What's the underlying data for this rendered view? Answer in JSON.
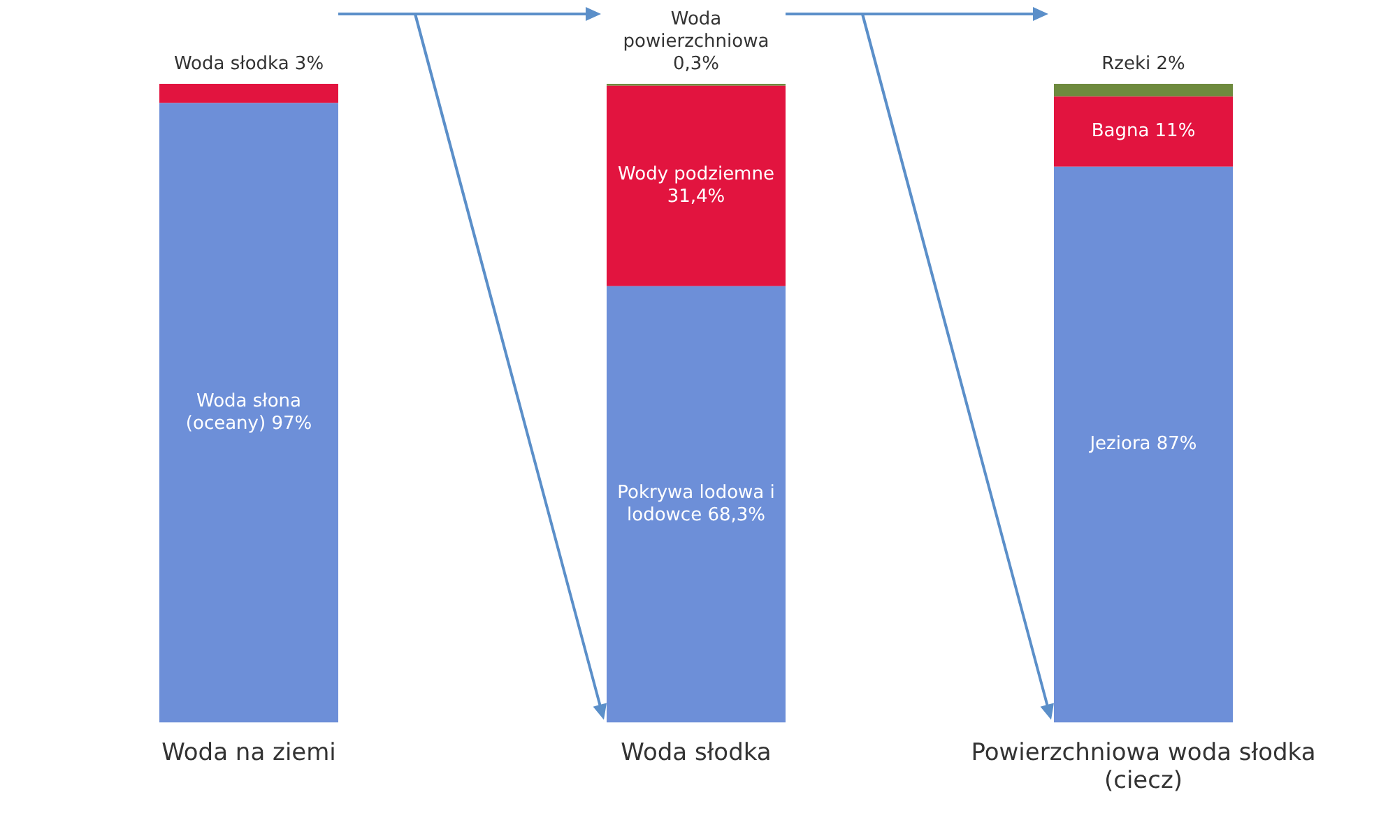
{
  "chart_data": {
    "type": "bar",
    "stacked": true,
    "categories": [
      "Woda na ziemi",
      "Woda słodka",
      "Powierzchniowa woda słodka (ciecz)"
    ],
    "ylim": [
      0,
      100
    ],
    "tick_labels": "x",
    "grid": false,
    "legend": false,
    "series": [
      {
        "color": "#6d8fd8",
        "values": [
          97,
          68.3,
          87
        ],
        "value_labels": [
          "Woda słona (oceany) 97%",
          "Pokrywa lodowa i lodowce 68,3%",
          "Jeziora 87%"
        ]
      },
      {
        "color": "#e2143f",
        "values": [
          3,
          31.4,
          11
        ],
        "value_labels": [
          "Woda słodka 3%",
          "Wody podziemne 31,4%",
          "Bagna 11%"
        ]
      },
      {
        "color": "#6e8a3e",
        "values": [
          null,
          0.3,
          2
        ],
        "value_labels": [
          null,
          "Woda powierzchniowa 0,3%",
          "Rzeki 2%"
        ]
      }
    ]
  }
}
